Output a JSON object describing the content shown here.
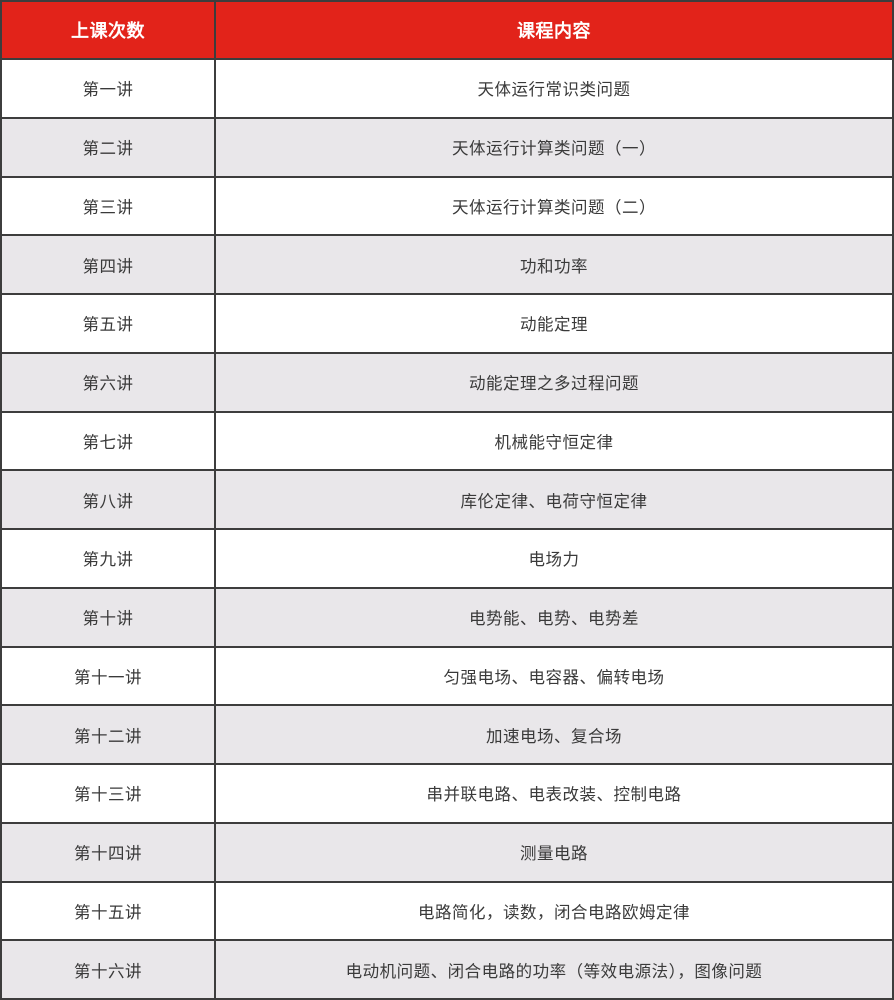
{
  "theme": {
    "header_bg": "#e2231a",
    "header_text": "#ffffff",
    "row_bg": "#ffffff",
    "row_alt_bg": "#e9e7ea",
    "border_color": "#3d3d3d",
    "body_text": "#3a3a3a"
  },
  "table": {
    "header": {
      "session_label": "上课次数",
      "content_label": "课程内容"
    },
    "rows": [
      {
        "session": "第一讲",
        "content": "天体运行常识类问题"
      },
      {
        "session": "第二讲",
        "content": "天体运行计算类问题（一）"
      },
      {
        "session": "第三讲",
        "content": "天体运行计算类问题（二）"
      },
      {
        "session": "第四讲",
        "content": "功和功率"
      },
      {
        "session": "第五讲",
        "content": "动能定理"
      },
      {
        "session": "第六讲",
        "content": "动能定理之多过程问题"
      },
      {
        "session": "第七讲",
        "content": "机械能守恒定律"
      },
      {
        "session": "第八讲",
        "content": "库伦定律、电荷守恒定律"
      },
      {
        "session": "第九讲",
        "content": "电场力"
      },
      {
        "session": "第十讲",
        "content": "电势能、电势、电势差"
      },
      {
        "session": "第十一讲",
        "content": "匀强电场、电容器、偏转电场"
      },
      {
        "session": "第十二讲",
        "content": "加速电场、复合场"
      },
      {
        "session": "第十三讲",
        "content": "串并联电路、电表改装、控制电路"
      },
      {
        "session": "第十四讲",
        "content": "测量电路"
      },
      {
        "session": "第十五讲",
        "content": "电路简化，读数，闭合电路欧姆定律"
      },
      {
        "session": "第十六讲",
        "content": "电动机问题、闭合电路的功率（等效电源法），图像问题"
      }
    ]
  }
}
